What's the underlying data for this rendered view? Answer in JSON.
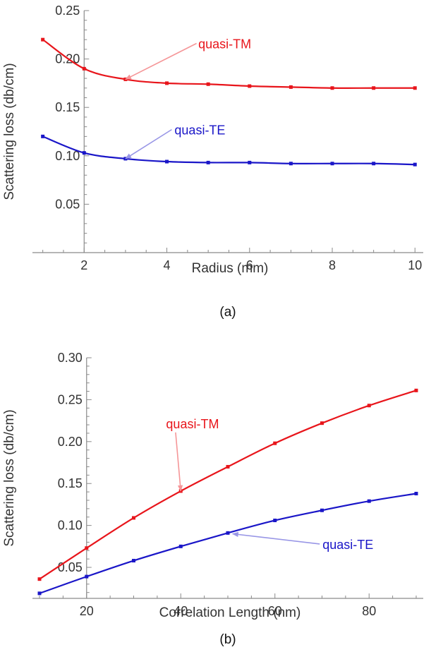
{
  "chart_data": [
    {
      "type": "line",
      "caption": "(a)",
      "xlabel": "Radius (mm)",
      "ylabel": "Scattering loss (db/cm)",
      "xlim": [
        0.75,
        10.2
      ],
      "ylim": [
        0,
        0.25
      ],
      "x_ticks": [
        2,
        4,
        6,
        8,
        10
      ],
      "y_ticks": [
        0.05,
        0.1,
        0.15,
        0.2,
        0.25
      ],
      "y_tick_labels": [
        "0.05",
        "0.10",
        "0.15",
        "0.20",
        "0.25"
      ],
      "axis_origin": [
        2,
        0
      ],
      "grid": false,
      "series": [
        {
          "name": "quasi-TM",
          "color": "#e8151b",
          "x": [
            1,
            2,
            3,
            4,
            5,
            6,
            7,
            8,
            9,
            10
          ],
          "y": [
            0.22,
            0.19,
            0.179,
            0.175,
            0.174,
            0.172,
            0.171,
            0.17,
            0.17,
            0.17
          ]
        },
        {
          "name": "quasi-TE",
          "color": "#1a16c8",
          "x": [
            1,
            2,
            3,
            4,
            5,
            6,
            7,
            8,
            9,
            10
          ],
          "y": [
            0.12,
            0.103,
            0.097,
            0.094,
            0.093,
            0.093,
            0.092,
            0.092,
            0.092,
            0.091
          ]
        }
      ],
      "annotations": [
        {
          "text": "quasi-TM",
          "series": 0,
          "arrow_to": [
            3,
            0.179
          ],
          "text_at": [
            5.4,
            0.211
          ]
        },
        {
          "text": "quasi-TE",
          "series": 1,
          "arrow_to": [
            3,
            0.097
          ],
          "text_at": [
            4.8,
            0.122
          ]
        }
      ]
    },
    {
      "type": "line",
      "caption": "(b)",
      "xlabel": "Correlation Length (nm)",
      "ylabel": "Scattering loss (db/cm)",
      "xlim": [
        8.5,
        91.5
      ],
      "ylim": [
        0.013,
        0.3
      ],
      "x_ticks": [
        20,
        40,
        60,
        80
      ],
      "y_ticks": [
        0.05,
        0.1,
        0.15,
        0.2,
        0.25,
        0.3
      ],
      "y_tick_labels": [
        "0.05",
        "0.10",
        "0.15",
        "0.20",
        "0.25",
        "0.30"
      ],
      "axis_origin": [
        20,
        0.013
      ],
      "grid": false,
      "series": [
        {
          "name": "quasi-TM",
          "color": "#e8151b",
          "x": [
            10,
            20,
            30,
            40,
            50,
            60,
            70,
            80,
            90
          ],
          "y": [
            0.036,
            0.073,
            0.109,
            0.141,
            0.17,
            0.198,
            0.222,
            0.243,
            0.261
          ]
        },
        {
          "name": "quasi-TE",
          "color": "#1a16c8",
          "x": [
            10,
            20,
            30,
            40,
            50,
            60,
            70,
            80,
            90
          ],
          "y": [
            0.019,
            0.039,
            0.058,
            0.075,
            0.091,
            0.106,
            0.118,
            0.129,
            0.138
          ]
        }
      ],
      "annotations": [
        {
          "text": "quasi-TM",
          "series": 0,
          "arrow_to": [
            40,
            0.141
          ],
          "text_at": [
            42.5,
            0.216
          ]
        },
        {
          "text": "quasi-TE",
          "series": 1,
          "arrow_to": [
            51,
            0.09
          ],
          "text_at": [
            75.5,
            0.072
          ]
        }
      ]
    }
  ]
}
